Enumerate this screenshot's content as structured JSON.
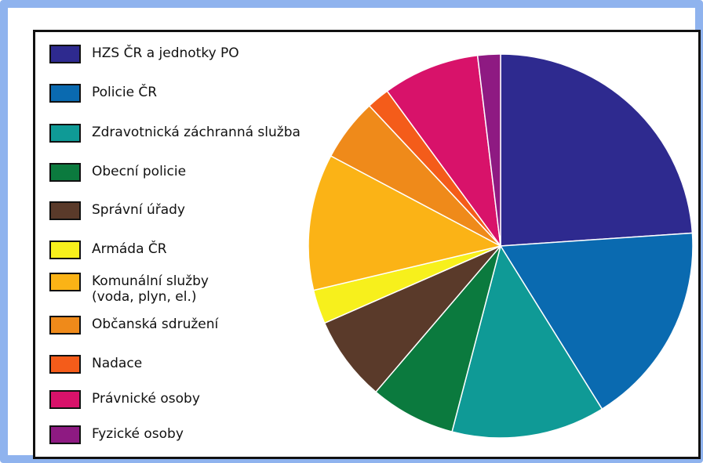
{
  "chart_data": {
    "type": "pie",
    "title": "",
    "slices": [
      {
        "label": "HZS ČR a jednotky PO",
        "value": 25.0,
        "color": "#2e2a8f"
      },
      {
        "label": "Policie ČR",
        "value": 18.0,
        "color": "#0a6ab0"
      },
      {
        "label": "Zdravotnická záchranná služba",
        "value": 13.5,
        "color": "#0f9a96"
      },
      {
        "label": "Obecní policie",
        "value": 7.5,
        "color": "#0b7a3e"
      },
      {
        "label": "Správní úřady",
        "value": 7.5,
        "color": "#5a3a2a"
      },
      {
        "label": "Armáda ČR",
        "value": 3.0,
        "color": "#f7f01c"
      },
      {
        "label": "Komunální služby\n(voda, plyn, el.)",
        "value": 12.0,
        "color": "#fbb316"
      },
      {
        "label": "Občanská sdružení",
        "value": 5.5,
        "color": "#ef8a1a"
      },
      {
        "label": "Nadace",
        "value": 2.0,
        "color": "#f45c1a"
      },
      {
        "label": "Právnické osoby",
        "value": 8.5,
        "color": "#d8126a"
      },
      {
        "label": "Fyzické osoby",
        "value": 2.0,
        "color": "#8e1a82"
      }
    ],
    "legend_position": "left"
  }
}
